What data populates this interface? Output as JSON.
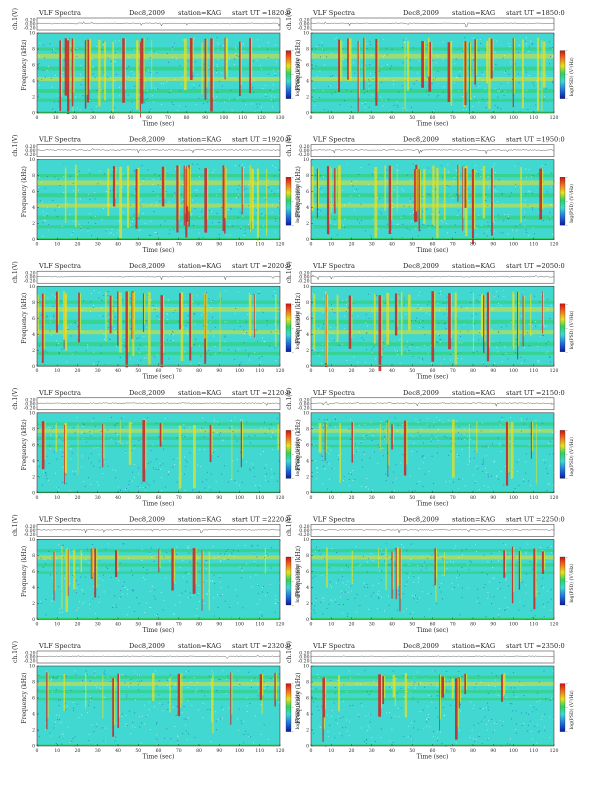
{
  "page": {
    "title_left": "VLF Spectra",
    "date": "Dec8,2009",
    "station": "station=KAG",
    "start_prefix": "start UT ="
  },
  "labels": {
    "ch_axis": "ch.1(V)",
    "freq_axis_left": "ch.1\nFrequency (kHz)",
    "freq_axis_right": "Frequency (kHz)",
    "time_axis": "Time (sec)",
    "colorbar_label": "log(PSD) (V²/Hz)",
    "colorbar_ticks": [
      "-",
      "-",
      "-"
    ]
  },
  "chart_data": [
    {
      "type": "heatmap",
      "start_ut": "1820:0",
      "column": "left",
      "time_range": [
        0,
        130
      ],
      "freq_range": [
        0,
        10
      ],
      "amp_ticks": [
        "0.20",
        "0.00",
        "-0.20"
      ],
      "freq_ticks": [
        "0",
        "2",
        "4",
        "6",
        "8",
        "10"
      ],
      "time_ticks": [
        "0",
        "10",
        "20",
        "30",
        "40",
        "50",
        "60",
        "70",
        "80",
        "90",
        "100",
        "110",
        "120",
        "130"
      ]
    },
    {
      "type": "heatmap",
      "start_ut": "1850:0",
      "column": "right",
      "time_range": [
        0,
        120
      ],
      "freq_range": [
        0,
        10
      ],
      "amp_ticks": [
        "0.20",
        "0.00",
        "-0.20"
      ],
      "freq_ticks": [
        "0",
        "2",
        "4",
        "6",
        "8",
        "10"
      ],
      "time_ticks": [
        "0",
        "10",
        "20",
        "30",
        "40",
        "50",
        "60",
        "70",
        "80",
        "90",
        "100",
        "110",
        "120"
      ]
    },
    {
      "type": "heatmap",
      "start_ut": "1920:0",
      "column": "left",
      "time_range": [
        0,
        120
      ],
      "freq_range": [
        0,
        10
      ],
      "amp_ticks": [
        "0.20",
        "0.00",
        "-0.20"
      ],
      "freq_ticks": [
        "0",
        "2",
        "4",
        "6",
        "8",
        "10"
      ],
      "time_ticks": [
        "0",
        "10",
        "20",
        "30",
        "40",
        "50",
        "60",
        "70",
        "80",
        "90",
        "100",
        "110",
        "120"
      ]
    },
    {
      "type": "heatmap",
      "start_ut": "1950:0",
      "column": "right",
      "time_range": [
        0,
        120
      ],
      "freq_range": [
        0,
        10
      ],
      "amp_ticks": [
        "0.20",
        "0.00",
        "-0.20"
      ],
      "freq_ticks": [
        "0",
        "2",
        "4",
        "6",
        "8",
        "10"
      ],
      "time_ticks": [
        "0",
        "10",
        "20",
        "30",
        "40",
        "50",
        "60",
        "70",
        "80",
        "90",
        "100",
        "110",
        "120"
      ]
    },
    {
      "type": "heatmap",
      "start_ut": "2020:0",
      "column": "left",
      "time_range": [
        0,
        120
      ],
      "freq_range": [
        0,
        10
      ],
      "amp_ticks": [
        "0.20",
        "0.00",
        "-0.20"
      ],
      "freq_ticks": [
        "0",
        "2",
        "4",
        "6",
        "8",
        "10"
      ],
      "time_ticks": [
        "0",
        "10",
        "20",
        "30",
        "40",
        "50",
        "60",
        "70",
        "80",
        "90",
        "100",
        "110",
        "120"
      ]
    },
    {
      "type": "heatmap",
      "start_ut": "2050:0",
      "column": "right",
      "time_range": [
        0,
        120
      ],
      "freq_range": [
        0,
        10
      ],
      "amp_ticks": [
        "0.20",
        "0.00",
        "-0.20"
      ],
      "freq_ticks": [
        "0",
        "2",
        "4",
        "6",
        "8",
        "10"
      ],
      "time_ticks": [
        "0",
        "10",
        "20",
        "30",
        "40",
        "50",
        "60",
        "70",
        "80",
        "90",
        "100",
        "110",
        "120"
      ]
    },
    {
      "type": "heatmap",
      "start_ut": "2120:0",
      "column": "left",
      "time_range": [
        0,
        120
      ],
      "freq_range": [
        0,
        10
      ],
      "amp_ticks": [
        "0.20",
        "0.00",
        "-0.20"
      ],
      "freq_ticks": [
        "0",
        "2",
        "4",
        "6",
        "8",
        "10"
      ],
      "time_ticks": [
        "0",
        "10",
        "20",
        "30",
        "40",
        "50",
        "60",
        "70",
        "80",
        "90",
        "100",
        "110",
        "120"
      ]
    },
    {
      "type": "heatmap",
      "start_ut": "2150:0",
      "column": "right",
      "time_range": [
        0,
        120
      ],
      "freq_range": [
        0,
        10
      ],
      "amp_ticks": [
        "0.20",
        "0.00",
        "-0.20"
      ],
      "freq_ticks": [
        "0",
        "2",
        "4",
        "6",
        "8",
        "10"
      ],
      "time_ticks": [
        "0",
        "10",
        "20",
        "30",
        "40",
        "50",
        "60",
        "70",
        "80",
        "90",
        "100",
        "110",
        "120"
      ]
    },
    {
      "type": "heatmap",
      "start_ut": "2220:0",
      "column": "left",
      "time_range": [
        0,
        120
      ],
      "freq_range": [
        0,
        10
      ],
      "amp_ticks": [
        "0.20",
        "0.00",
        "-0.20"
      ],
      "freq_ticks": [
        "0",
        "2",
        "4",
        "6",
        "8",
        "10"
      ],
      "time_ticks": [
        "0",
        "10",
        "20",
        "30",
        "40",
        "50",
        "60",
        "70",
        "80",
        "90",
        "100",
        "110",
        "120"
      ]
    },
    {
      "type": "heatmap",
      "start_ut": "2250:0",
      "column": "right",
      "time_range": [
        0,
        120
      ],
      "freq_range": [
        0,
        10
      ],
      "amp_ticks": [
        "0.20",
        "0.00",
        "-0.20"
      ],
      "freq_ticks": [
        "0",
        "2",
        "4",
        "6",
        "8",
        "10"
      ],
      "time_ticks": [
        "0",
        "10",
        "20",
        "30",
        "40",
        "50",
        "60",
        "70",
        "80",
        "90",
        "100",
        "110",
        "120"
      ]
    },
    {
      "type": "heatmap",
      "start_ut": "2320:0",
      "column": "left",
      "time_range": [
        0,
        120
      ],
      "freq_range": [
        0,
        10
      ],
      "amp_ticks": [
        "0.20",
        "0.00",
        "-0.20"
      ],
      "freq_ticks": [
        "0",
        "2",
        "4",
        "6",
        "8",
        "10"
      ],
      "time_ticks": [
        "0",
        "10",
        "20",
        "30",
        "40",
        "50",
        "60",
        "70",
        "80",
        "90",
        "100",
        "110",
        "120"
      ]
    },
    {
      "type": "heatmap",
      "start_ut": "2350:0",
      "column": "right",
      "time_range": [
        0,
        120
      ],
      "freq_range": [
        0,
        10
      ],
      "amp_ticks": [
        "0.20",
        "0.00",
        "-0.20"
      ],
      "freq_ticks": [
        "0",
        "2",
        "4",
        "6",
        "8",
        "10"
      ],
      "time_ticks": [
        "0",
        "10",
        "20",
        "30",
        "40",
        "50",
        "60",
        "70",
        "80",
        "90",
        "100",
        "110",
        "120"
      ]
    }
  ],
  "colors": {
    "background": "#ffffff",
    "noise_cyan": "#40d8d0",
    "band_green": "#2fd060",
    "band_yellow": "#e8e020",
    "burst_red": "#d02020",
    "dark_blue": "#2040c0",
    "axis": "#222222"
  }
}
